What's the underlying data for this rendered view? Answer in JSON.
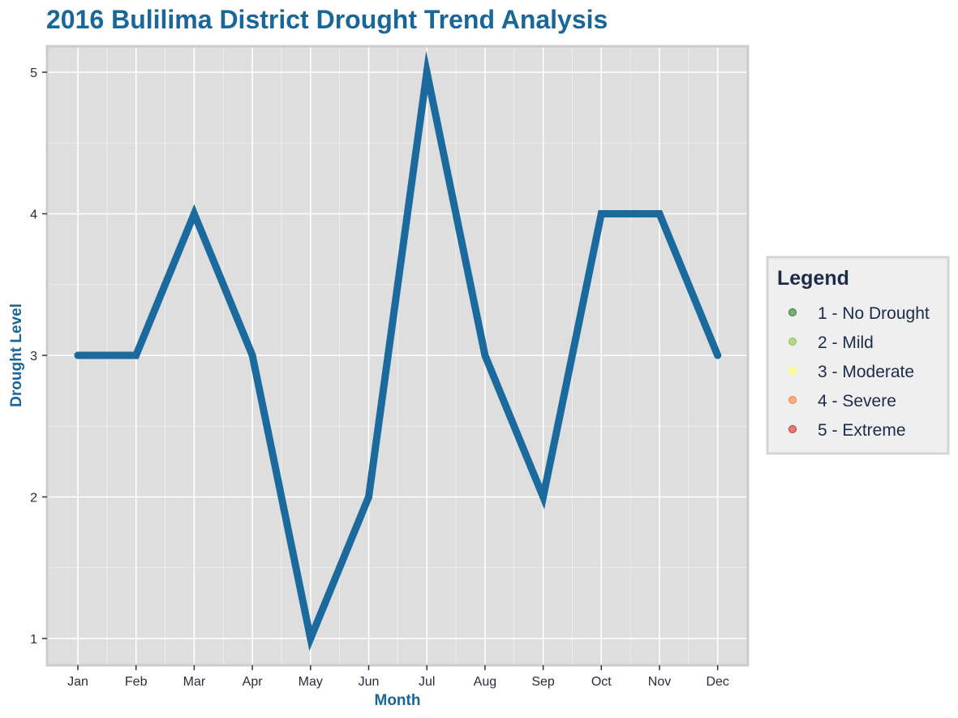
{
  "chart_data": {
    "type": "line",
    "title": "2016 Bulilima District Drought Trend Analysis",
    "xlabel": "Month",
    "ylabel": "Drought Level",
    "categories": [
      "Jan",
      "Feb",
      "Mar",
      "Apr",
      "May",
      "Jun",
      "Jul",
      "Aug",
      "Sep",
      "Oct",
      "Nov",
      "Dec"
    ],
    "series": [
      {
        "values": [
          3,
          3,
          4,
          3,
          1,
          2,
          5,
          3,
          2,
          4,
          4,
          3
        ],
        "color": "#1a6a9e"
      }
    ],
    "ylim": [
      1,
      5
    ],
    "yticks": [
      1,
      2,
      3,
      4,
      5
    ],
    "grid": true,
    "legend": {
      "title": "Legend",
      "placement": "right",
      "items": [
        {
          "label": "1 - No Drought",
          "color": "#2e7d32"
        },
        {
          "label": "2 - Mild",
          "color": "#8bc34a"
        },
        {
          "label": "3 - Moderate",
          "color": "#ffff66"
        },
        {
          "label": "4 - Severe",
          "color": "#ff7f3f"
        },
        {
          "label": "5 - Extreme",
          "color": "#d32f2f"
        }
      ]
    },
    "colors": {
      "panel_background": "#dedede",
      "panel_border": "#cccccc",
      "gridline": "#ffffff",
      "title": "#1a6699",
      "legend_background": "#efefef",
      "legend_border": "#d4d4d4"
    }
  }
}
